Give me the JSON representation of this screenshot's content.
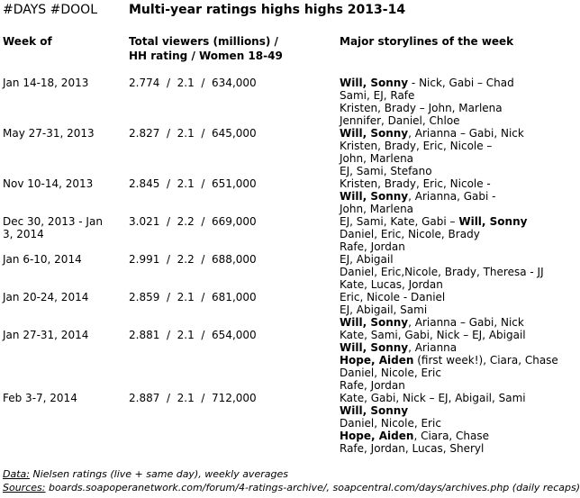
{
  "header": {
    "tag": "#DAYS #DOOL",
    "title": "Multi-year ratings highs highs 2013-14"
  },
  "table": {
    "columns": [
      [
        "Week of"
      ],
      [
        "Total viewers (millions) /",
        "HH rating / Women 18-49"
      ],
      [
        "Major storylines of the week"
      ]
    ],
    "rows": [
      {
        "week": "Jan 14-18, 2013",
        "ratings": "2.774  /  2.1  /  634,000",
        "storylines": [
          [
            {
              "text": "Will, Sonny",
              "bold": true
            },
            {
              "text": " - Nick, Gabi – Chad"
            }
          ],
          [
            {
              "text": "Sami, EJ, Rafe"
            }
          ],
          [
            {
              "text": "Kristen, Brady – John, Marlena"
            }
          ],
          [
            {
              "text": "Jennifer, Daniel, Chloe"
            }
          ]
        ]
      },
      {
        "week": "May 27-31, 2013",
        "ratings": "2.827  /  2.1  /  645,000",
        "storylines": [
          [
            {
              "text": "Will, Sonny",
              "bold": true
            },
            {
              "text": ", Arianna – Gabi, Nick"
            }
          ],
          [
            {
              "text": "Kristen, Brady, Eric, Nicole –"
            }
          ],
          [
            {
              "text": "John, Marlena"
            }
          ],
          [
            {
              "text": "EJ, Sami, Stefano"
            }
          ]
        ]
      },
      {
        "week": "Nov 10-14, 2013",
        "ratings": "2.845  /  2.1  /  651,000",
        "storylines": [
          [
            {
              "text": "Kristen, Brady, Eric, Nicole -"
            }
          ],
          [
            {
              "text": "Will, Sonny",
              "bold": true
            },
            {
              "text": ", Arianna, Gabi -"
            }
          ],
          [
            {
              "text": "John, Marlena"
            }
          ]
        ]
      },
      {
        "week": "Dec 30, 2013 - Jan 3, 2014",
        "ratings": "3.021  /  2.2  /  669,000",
        "storylines": [
          [
            {
              "text": "EJ, Sami, Kate, Gabi – "
            },
            {
              "text": "Will, Sonny",
              "bold": true
            }
          ],
          [
            {
              "text": "Daniel, Eric, Nicole, Brady"
            }
          ],
          [
            {
              "text": "Rafe, Jordan"
            }
          ]
        ]
      },
      {
        "week": "Jan 6-10, 2014",
        "ratings": "2.991  /  2.2  /  688,000",
        "storylines": [
          [
            {
              "text": "EJ, Abigail"
            }
          ],
          [
            {
              "text": "Daniel, Eric,Nicole, Brady, Theresa - JJ"
            }
          ],
          [
            {
              "text": "Kate, Lucas, Jordan"
            }
          ]
        ]
      },
      {
        "week": "Jan 20-24, 2014",
        "ratings": "2.859  /  2.1  /  681,000",
        "storylines": [
          [
            {
              "text": "Eric, Nicole - Daniel"
            }
          ],
          [
            {
              "text": "EJ, Abigail, Sami"
            }
          ],
          [
            {
              "text": "Will, Sonny",
              "bold": true
            },
            {
              "text": ", Arianna – Gabi, Nick"
            }
          ]
        ]
      },
      {
        "week": "Jan 27-31, 2014",
        "ratings": "2.881  /  2.1  /  654,000",
        "storylines": [
          [
            {
              "text": "Kate, Sami, Gabi, Nick – EJ, Abigail"
            }
          ],
          [
            {
              "text": "Will, Sonny",
              "bold": true
            },
            {
              "text": ", Arianna"
            }
          ],
          [
            {
              "text": "Hope, Aiden",
              "bold": true
            },
            {
              "text": " (first week!), Ciara, Chase"
            }
          ],
          [
            {
              "text": "Daniel, Nicole, Eric"
            }
          ],
          [
            {
              "text": "Rafe, Jordan"
            }
          ]
        ]
      },
      {
        "week": "Feb 3-7, 2014",
        "ratings": "2.887  /  2.1  /  712,000",
        "storylines": [
          [
            {
              "text": "Kate, Gabi, Nick – EJ, Abigail, Sami"
            }
          ],
          [
            {
              "text": "Will, Sonny",
              "bold": true
            }
          ],
          [
            {
              "text": "Daniel, Nicole, Eric"
            }
          ],
          [
            {
              "text": "Hope, Aiden",
              "bold": true
            },
            {
              "text": ", Ciara, Chase"
            }
          ],
          [
            {
              "text": "Rafe, Jordan, Lucas, Sheryl"
            }
          ]
        ]
      }
    ]
  },
  "footer": [
    {
      "label": "Data:",
      "text": " Nielsen ratings (live + same day), weekly averages"
    },
    {
      "label": "Sources:",
      "text": " boards.soapoperanetwork.com/forum/4-ratings-archive/, soapcentral.com/days/archives.php (daily recaps)"
    }
  ]
}
